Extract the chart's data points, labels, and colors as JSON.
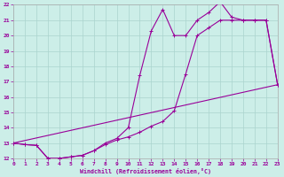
{
  "xlabel": "Windchill (Refroidissement éolien,°C)",
  "bg_color": "#cceee8",
  "grid_color": "#aad4ce",
  "line_color": "#990099",
  "spine_color": "#aaaaaa",
  "xmin": 0,
  "xmax": 23,
  "ymin": 12,
  "ymax": 22,
  "line1_x": [
    0,
    1,
    2,
    3,
    4,
    5,
    6,
    7,
    8,
    9,
    10,
    11,
    12,
    13,
    14,
    15,
    16,
    17,
    18,
    19,
    20,
    21,
    22,
    23
  ],
  "line1_y": [
    13,
    12.9,
    12.85,
    12.0,
    12.0,
    12.1,
    12.2,
    12.5,
    12.9,
    13.2,
    13.4,
    13.7,
    14.1,
    14.4,
    15.1,
    17.5,
    20.0,
    20.5,
    21.0,
    21.0,
    21.0,
    21.0,
    21.0,
    16.8
  ],
  "line2_x": [
    0,
    1,
    2,
    3,
    4,
    5,
    6,
    7,
    8,
    9,
    10,
    11,
    12,
    13,
    14,
    15,
    16,
    17,
    18,
    19,
    20,
    21,
    22,
    23
  ],
  "line2_y": [
    13,
    12.9,
    12.85,
    12.0,
    12.0,
    12.1,
    12.2,
    12.5,
    13.0,
    13.3,
    14.0,
    17.4,
    20.3,
    21.7,
    20.0,
    20.0,
    21.0,
    21.5,
    22.2,
    21.2,
    21.0,
    21.0,
    21.0,
    16.8
  ],
  "line3_x": [
    0,
    23
  ],
  "line3_y": [
    13,
    16.8
  ],
  "yticks": [
    12,
    13,
    14,
    15,
    16,
    17,
    18,
    19,
    20,
    21,
    22
  ],
  "xticks": [
    0,
    1,
    2,
    3,
    4,
    5,
    6,
    7,
    8,
    9,
    10,
    11,
    12,
    13,
    14,
    15,
    16,
    17,
    18,
    19,
    20,
    21,
    22,
    23
  ]
}
